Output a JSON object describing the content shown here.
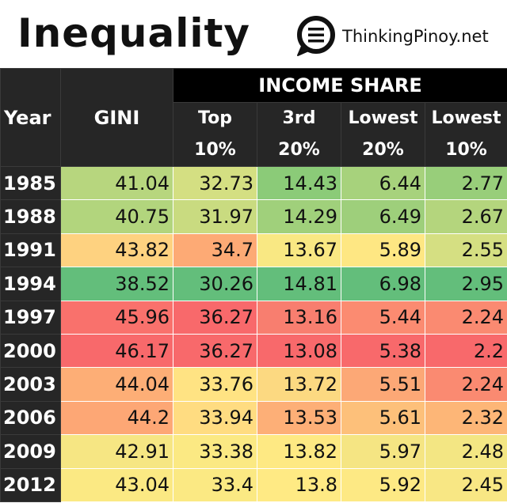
{
  "header": {
    "title": "Inequality",
    "logo_icon": "chat-bubble-menu-icon",
    "brand": "ThinkingPinoy.net"
  },
  "table": {
    "columns": {
      "year": "Year",
      "gini": "GINI",
      "group": "INCOME SHARE",
      "sub": [
        {
          "l1": "Top",
          "l2": "10%"
        },
        {
          "l1": "3rd",
          "l2": "20%"
        },
        {
          "l1": "Lowest",
          "l2": "20%"
        },
        {
          "l1": "Lowest",
          "l2": "10%"
        }
      ]
    },
    "rows": [
      {
        "year": "1985",
        "gini": "41.04",
        "top10": "32.73",
        "third20": "14.43",
        "lowest20": "6.44",
        "lowest10": "2.77"
      },
      {
        "year": "1988",
        "gini": "40.75",
        "top10": "31.97",
        "third20": "14.29",
        "lowest20": "6.49",
        "lowest10": "2.67"
      },
      {
        "year": "1991",
        "gini": "43.82",
        "top10": "34.7",
        "third20": "13.67",
        "lowest20": "5.89",
        "lowest10": "2.55"
      },
      {
        "year": "1994",
        "gini": "38.52",
        "top10": "30.26",
        "third20": "14.81",
        "lowest20": "6.98",
        "lowest10": "2.95"
      },
      {
        "year": "1997",
        "gini": "45.96",
        "top10": "36.27",
        "third20": "13.16",
        "lowest20": "5.44",
        "lowest10": "2.24"
      },
      {
        "year": "2000",
        "gini": "46.17",
        "top10": "36.27",
        "third20": "13.08",
        "lowest20": "5.38",
        "lowest10": "2.2"
      },
      {
        "year": "2003",
        "gini": "44.04",
        "top10": "33.76",
        "third20": "13.72",
        "lowest20": "5.51",
        "lowest10": "2.24"
      },
      {
        "year": "2006",
        "gini": "44.2",
        "top10": "33.94",
        "third20": "13.53",
        "lowest20": "5.61",
        "lowest10": "2.32"
      },
      {
        "year": "2009",
        "gini": "42.91",
        "top10": "33.38",
        "third20": "13.82",
        "lowest20": "5.97",
        "lowest10": "2.48"
      },
      {
        "year": "2012",
        "gini": "43.04",
        "top10": "33.4",
        "third20": "13.8",
        "lowest20": "5.92",
        "lowest10": "2.45"
      }
    ]
  },
  "colors": {
    "row_fill": [
      [
        "#b7d67e",
        "#d4df82",
        "#8bcb78",
        "#a7d27c",
        "#98ce7a"
      ],
      [
        "#b2d57d",
        "#c9db80",
        "#a0d07b",
        "#9ecf7b",
        "#b4d57d"
      ],
      [
        "#fed280",
        "#fdaa75",
        "#f9e883",
        "#fee783",
        "#d5df82"
      ],
      [
        "#63be7b",
        "#63be7b",
        "#63be7b",
        "#63be7b",
        "#63be7b"
      ],
      [
        "#f9716c",
        "#f8696b",
        "#f87e6f",
        "#fb8b71",
        "#fa8a71"
      ],
      [
        "#f8696b",
        "#f8696b",
        "#f8696b",
        "#f8696b",
        "#f8696b"
      ],
      [
        "#fdae76",
        "#ffe383",
        "#fcd981",
        "#fca876",
        "#fa8a71"
      ],
      [
        "#fda775",
        "#ffdc81",
        "#fdaf77",
        "#fdc07a",
        "#fdb677"
      ],
      [
        "#f6e683",
        "#fbe983",
        "#fee983",
        "#f5e583",
        "#f3e683"
      ],
      [
        "#fbe983",
        "#fbe983",
        "#ffea84",
        "#fde984",
        "#f8e784"
      ]
    ]
  }
}
